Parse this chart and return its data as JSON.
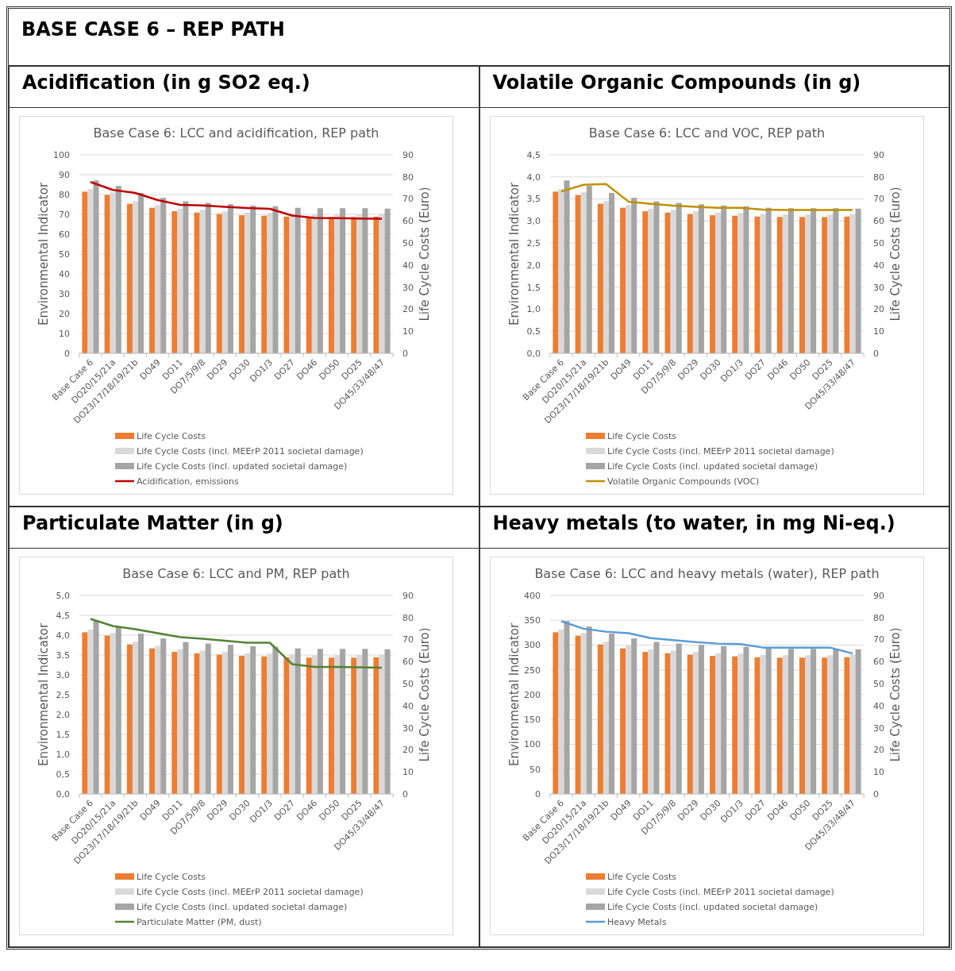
{
  "chart_data": [
    {
      "type": "bar",
      "annotations": [
        "BASE CASE 6 – REP PATH"
      ],
      "subtitle": "Acidification (in g SO2 eq.)",
      "title": "Base Case 6: LCC and acidification, REP path",
      "ylabel": "Environmental Indicator",
      "y2label": "Life Cycle Costs (Euro)",
      "categories": [
        "Base Case 6",
        "DO20/15/21a",
        "DO23/17/18/19/21b",
        "DO49",
        "DO11",
        "DO7/5/9/8",
        "DO29",
        "DO30",
        "DO1/3",
        "DO27",
        "DO46",
        "DO50",
        "DO25",
        "DO45/33/48/47"
      ],
      "ylim": [
        0,
        100
      ],
      "yticks": [
        0,
        10,
        20,
        30,
        40,
        50,
        60,
        70,
        80,
        90,
        100
      ],
      "y2lim": [
        0,
        90
      ],
      "y2ticks": [
        0,
        10,
        20,
        30,
        40,
        50,
        60,
        70,
        80,
        90
      ],
      "grid": "y",
      "legend": "bottom",
      "series": [
        {
          "name": "Life Cycle Costs",
          "color": "#ed7d31",
          "axis": "y2",
          "values": [
            73.3,
            71.8,
            67.8,
            66.0,
            64.4,
            63.8,
            63.2,
            62.6,
            62.4,
            62.0,
            61.8,
            61.8,
            61.8,
            62.0
          ]
        },
        {
          "name": "Life Cycle Costs (incl. MEErP 2011 societal damage)",
          "color": "#d9d9d9",
          "axis": "y2",
          "values": [
            74.5,
            73.0,
            69.0,
            67.2,
            65.6,
            65.0,
            64.4,
            63.8,
            63.6,
            63.2,
            62.9,
            62.9,
            62.9,
            63.2
          ]
        },
        {
          "name": "Life Cycle Costs (incl. updated societal damage)",
          "color": "#a5a5a5",
          "axis": "y2",
          "values": [
            78.4,
            75.9,
            72.7,
            70.5,
            68.9,
            68.2,
            67.6,
            67.0,
            66.7,
            66.0,
            65.8,
            65.8,
            65.8,
            65.6
          ]
        },
        {
          "name": "Acidification, emissions",
          "color": "#c00000",
          "type": "line",
          "values": [
            86.3,
            82.3,
            80.8,
            77.2,
            74.8,
            74.5,
            73.8,
            73.2,
            72.8,
            69.4,
            68.2,
            68.1,
            67.9,
            67.8
          ]
        }
      ]
    },
    {
      "type": "bar",
      "subtitle": "Volatile Organic Compounds (in g)",
      "title": "Base Case 6: LCC and VOC, REP path",
      "ylabel": "Environmental Indicator",
      "y2label": "Life Cycle Costs (Euro)",
      "categories": [
        "Base Case 6",
        "DO20/15/21a",
        "DO23/17/18/19/21b",
        "DO49",
        "DO11",
        "DO7/5/9/8",
        "DO29",
        "DO30",
        "DO1/3",
        "DO27",
        "DO46",
        "DO50",
        "DO25",
        "DO45/33/48/47"
      ],
      "ylim": [
        0,
        4.5
      ],
      "yticks": [
        {
          "value": 0,
          "label": "0,0"
        },
        {
          "value": 0.5,
          "label": "0,5"
        },
        {
          "value": 1,
          "label": "1,0"
        },
        {
          "value": 1.5,
          "label": "1,5"
        },
        {
          "value": 2,
          "label": "2,0"
        },
        {
          "value": 2.5,
          "label": "2,5"
        },
        {
          "value": 3,
          "label": "3,0"
        },
        {
          "value": 3.5,
          "label": "3,5"
        },
        {
          "value": 4,
          "label": "4,0"
        },
        {
          "value": 4.5,
          "label": "4,5"
        }
      ],
      "y2lim": [
        0,
        90
      ],
      "y2ticks": [
        0,
        10,
        20,
        30,
        40,
        50,
        60,
        70,
        80,
        90
      ],
      "grid": "y",
      "legend": "bottom",
      "series": [
        {
          "name": "Life Cycle Costs",
          "color": "#ed7d31",
          "axis": "y2",
          "values": [
            73.3,
            71.8,
            67.8,
            66.0,
            64.4,
            63.8,
            63.2,
            62.6,
            62.4,
            62.0,
            61.8,
            61.8,
            61.8,
            62.0
          ]
        },
        {
          "name": "Life Cycle Costs (incl. MEErP 2011 societal damage)",
          "color": "#d9d9d9",
          "axis": "y2",
          "values": [
            74.5,
            73.0,
            69.0,
            67.2,
            65.6,
            65.0,
            64.4,
            63.8,
            63.6,
            63.2,
            62.9,
            62.9,
            62.9,
            63.2
          ]
        },
        {
          "name": "Life Cycle Costs (incl. updated societal damage)",
          "color": "#a5a5a5",
          "axis": "y2",
          "values": [
            78.4,
            75.9,
            72.7,
            70.5,
            68.9,
            68.2,
            67.6,
            67.0,
            66.7,
            66.0,
            65.8,
            65.8,
            65.8,
            65.6
          ]
        },
        {
          "name": "Volatile Organic Compounds (VOC)",
          "color": "#bf9000",
          "type": "line",
          "values": [
            3.67,
            3.82,
            3.84,
            3.44,
            3.39,
            3.35,
            3.32,
            3.3,
            3.3,
            3.26,
            3.25,
            3.25,
            3.25,
            3.25
          ]
        }
      ]
    },
    {
      "type": "bar",
      "subtitle": "Particulate Matter (in g)",
      "title": "Base Case 6: LCC and PM, REP path",
      "ylabel": "Environmental Indicator",
      "y2label": "Life Cycle Costs (Euro)",
      "categories": [
        "Base Case 6",
        "DO20/15/21a",
        "DO23/17/18/19/21b",
        "DO49",
        "DO11",
        "DO7/5/9/8",
        "DO29",
        "DO30",
        "DO1/3",
        "DO27",
        "DO46",
        "DO50",
        "DO25",
        "DO45/33/48/47"
      ],
      "ylim": [
        0,
        5
      ],
      "yticks": [
        {
          "value": 0,
          "label": "0,0"
        },
        {
          "value": 0.5,
          "label": "0,5"
        },
        {
          "value": 1,
          "label": "1,0"
        },
        {
          "value": 1.5,
          "label": "1,5"
        },
        {
          "value": 2,
          "label": "2,0"
        },
        {
          "value": 2.5,
          "label": "2,5"
        },
        {
          "value": 3,
          "label": "3,0"
        },
        {
          "value": 3.5,
          "label": "3,5"
        },
        {
          "value": 4,
          "label": "4,0"
        },
        {
          "value": 4.5,
          "label": "4,5"
        },
        {
          "value": 5,
          "label": "5,0"
        }
      ],
      "y2lim": [
        0,
        90
      ],
      "y2ticks": [
        0,
        10,
        20,
        30,
        40,
        50,
        60,
        70,
        80,
        90
      ],
      "grid": "y",
      "legend": "bottom",
      "series": [
        {
          "name": "Life Cycle Costs",
          "color": "#ed7d31",
          "axis": "y2",
          "values": [
            73.3,
            71.8,
            67.8,
            66.0,
            64.4,
            63.8,
            63.2,
            62.6,
            62.4,
            62.0,
            61.8,
            61.8,
            61.8,
            62.0
          ]
        },
        {
          "name": "Life Cycle Costs (incl. MEErP 2011 societal damage)",
          "color": "#d9d9d9",
          "axis": "y2",
          "values": [
            74.5,
            73.0,
            69.0,
            67.2,
            65.6,
            65.0,
            64.4,
            63.8,
            63.6,
            63.2,
            62.9,
            62.9,
            62.9,
            63.2
          ]
        },
        {
          "name": "Life Cycle Costs (incl. updated societal damage)",
          "color": "#a5a5a5",
          "axis": "y2",
          "values": [
            78.4,
            75.9,
            72.7,
            70.5,
            68.9,
            68.2,
            67.6,
            67.0,
            66.7,
            66.0,
            65.8,
            65.8,
            65.8,
            65.6
          ]
        },
        {
          "name": "Particulate Matter (PM, dust)",
          "color": "#548235",
          "type": "line",
          "values": [
            4.41,
            4.23,
            4.15,
            4.05,
            3.95,
            3.91,
            3.86,
            3.81,
            3.81,
            3.27,
            3.2,
            3.2,
            3.19,
            3.18
          ]
        }
      ]
    },
    {
      "type": "bar",
      "subtitle": "Heavy metals (to water, in mg Ni-eq.)",
      "title": "Base Case 6: LCC and heavy metals (water), REP path",
      "ylabel": "Environmental Indicator",
      "y2label": "Life Cycle Costs (Euro)",
      "categories": [
        "Base Case 6",
        "DO20/15/21a",
        "DO23/17/18/19/21b",
        "DO49",
        "DO11",
        "DO7/5/9/8",
        "DO29",
        "DO30",
        "DO1/3",
        "DO27",
        "DO46",
        "DO50",
        "DO25",
        "DO45/33/48/47"
      ],
      "ylim": [
        0,
        400
      ],
      "yticks": [
        0,
        50,
        100,
        150,
        200,
        250,
        300,
        350,
        400
      ],
      "y2lim": [
        0,
        90
      ],
      "y2ticks": [
        0,
        10,
        20,
        30,
        40,
        50,
        60,
        70,
        80,
        90
      ],
      "grid": "y",
      "legend": "bottom",
      "series": [
        {
          "name": "Life Cycle Costs",
          "color": "#ed7d31",
          "axis": "y2",
          "values": [
            73.3,
            71.8,
            67.8,
            66.0,
            64.4,
            63.8,
            63.2,
            62.6,
            62.4,
            62.0,
            61.8,
            61.8,
            61.8,
            62.0
          ]
        },
        {
          "name": "Life Cycle Costs (incl. MEErP 2011 societal damage)",
          "color": "#d9d9d9",
          "axis": "y2",
          "values": [
            74.5,
            73.0,
            69.0,
            67.2,
            65.6,
            65.0,
            64.4,
            63.8,
            63.6,
            63.2,
            62.9,
            62.9,
            62.9,
            63.2
          ]
        },
        {
          "name": "Life Cycle Costs (incl. updated societal damage)",
          "color": "#a5a5a5",
          "axis": "y2",
          "values": [
            78.4,
            75.9,
            72.7,
            70.5,
            68.9,
            68.2,
            67.6,
            67.0,
            66.7,
            66.0,
            65.8,
            65.8,
            65.8,
            65.6
          ]
        },
        {
          "name": "Heavy Metals",
          "color": "#5b9bd5",
          "type": "line",
          "values": [
            348,
            333,
            327,
            324,
            314,
            310,
            306,
            303,
            302,
            295,
            295,
            295,
            295,
            283
          ]
        }
      ]
    }
  ]
}
